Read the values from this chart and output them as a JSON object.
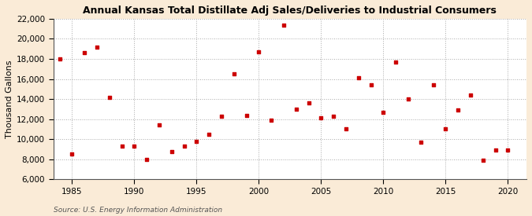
{
  "title": "Annual Kansas Total Distillate Adj Sales/Deliveries to Industrial Consumers",
  "ylabel": "Thousand Gallons",
  "source": "Source: U.S. Energy Information Administration",
  "fig_facecolor": "#faebd7",
  "plot_facecolor": "#ffffff",
  "marker_color": "#cc0000",
  "marker": "s",
  "marker_size": 3.5,
  "xlim": [
    1983.5,
    2021.5
  ],
  "ylim": [
    6000,
    22000
  ],
  "yticks": [
    6000,
    8000,
    10000,
    12000,
    14000,
    16000,
    18000,
    20000,
    22000
  ],
  "xticks": [
    1985,
    1990,
    1995,
    2000,
    2005,
    2010,
    2015,
    2020
  ],
  "years": [
    1984,
    1985,
    1986,
    1987,
    1988,
    1989,
    1990,
    1991,
    1992,
    1993,
    1994,
    1995,
    1996,
    1997,
    1998,
    1999,
    2000,
    2001,
    2002,
    2003,
    2004,
    2005,
    2006,
    2007,
    2008,
    2009,
    2010,
    2011,
    2012,
    2013,
    2014,
    2015,
    2016,
    2017,
    2018,
    2019,
    2020
  ],
  "values": [
    18000,
    8500,
    18600,
    19200,
    14200,
    9300,
    9300,
    7950,
    11400,
    8800,
    9300,
    9800,
    10500,
    12300,
    16500,
    12400,
    18700,
    11900,
    21400,
    13000,
    13600,
    12100,
    12300,
    11000,
    16100,
    15400,
    12700,
    17700,
    14000,
    9700,
    15400,
    11000,
    12900,
    14400,
    7900,
    8900,
    8900
  ],
  "title_fontsize": 9,
  "ylabel_fontsize": 8,
  "tick_fontsize": 7.5,
  "source_fontsize": 6.5
}
